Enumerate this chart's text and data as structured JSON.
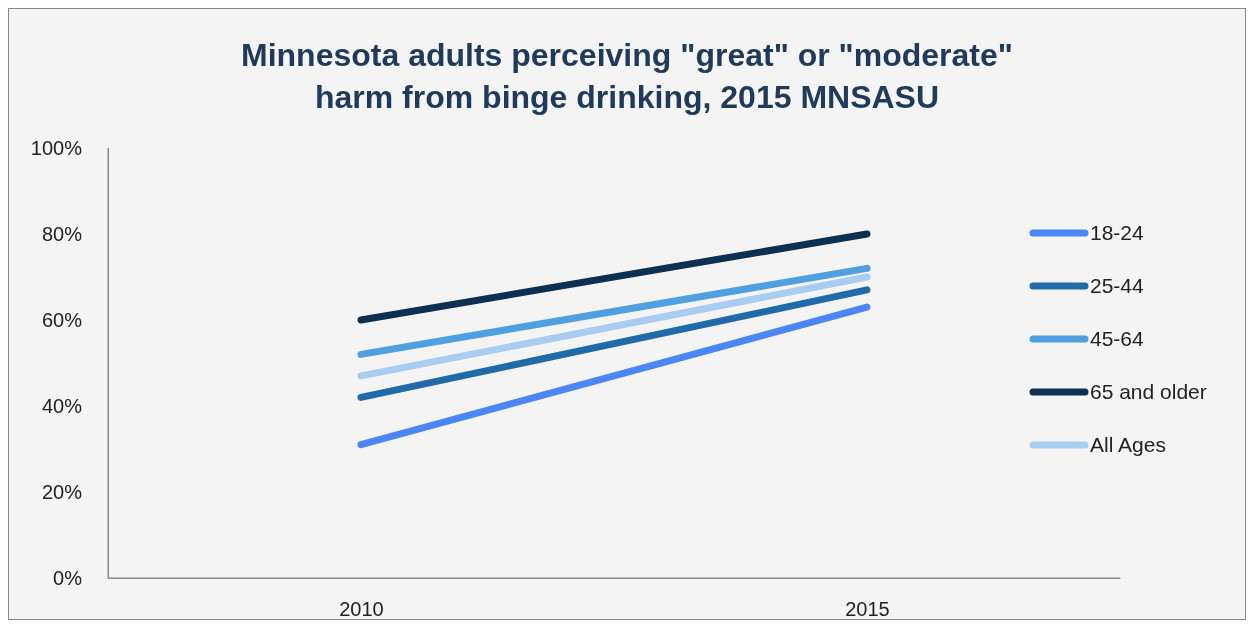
{
  "chart_data": {
    "type": "line",
    "title": "Minnesota adults perceiving \"great\" or \"moderate\" harm from binge drinking, 2015 MNSASU",
    "x": [
      2010,
      2015
    ],
    "xlim": [
      2007.5,
      2017.5
    ],
    "xticks": [
      2010,
      2015
    ],
    "series": [
      {
        "name": "18-24",
        "color": "#4a86f7",
        "values": [
          31,
          63
        ]
      },
      {
        "name": "25-44",
        "color": "#1f6aa8",
        "values": [
          42,
          67
        ]
      },
      {
        "name": "45-64",
        "color": "#4fa0e0",
        "values": [
          52,
          72
        ]
      },
      {
        "name": "65 and older",
        "color": "#0d2f50",
        "values": [
          60,
          80
        ]
      },
      {
        "name": "All Ages",
        "color": "#a9cdf0",
        "values": [
          47,
          70
        ]
      }
    ],
    "ylim": [
      0,
      100
    ],
    "yticks": [
      {
        "value": 0,
        "label": "0%"
      },
      {
        "value": 20,
        "label": "20%"
      },
      {
        "value": 40,
        "label": "40%"
      },
      {
        "value": 60,
        "label": "60%"
      },
      {
        "value": 80,
        "label": "80%"
      },
      {
        "value": 100,
        "label": "100%"
      }
    ],
    "grid": false,
    "legend": "right",
    "marker": "none",
    "line_style": "solid"
  }
}
